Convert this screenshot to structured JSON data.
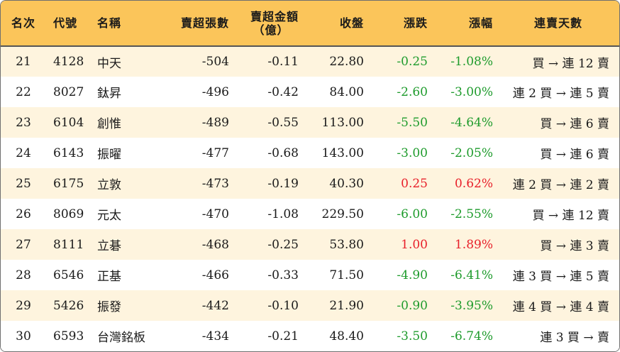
{
  "colors": {
    "header_bg": "#fbc55a",
    "stripe_bg": "#fef4de",
    "down_color": "#1e9b2c",
    "up_color": "#e8202a"
  },
  "headers": {
    "rank": "名次",
    "code": "代號",
    "name": "名稱",
    "net_sell_volume": "賣超張數",
    "net_sell_amount_line1": "賣超金額",
    "net_sell_amount_line2": "（億）",
    "close": "收盤",
    "change": "漲跌",
    "change_pct": "漲幅",
    "streak": "連賣天數"
  },
  "rows": [
    {
      "rank": "21",
      "code": "4128",
      "name": "中天",
      "volume": "-504",
      "amount": "-0.11",
      "close": "22.80",
      "change": "-0.25",
      "pct": "-1.08%",
      "dir": "down",
      "streak": "買 → 連 12 賣"
    },
    {
      "rank": "22",
      "code": "8027",
      "name": "鈦昇",
      "volume": "-496",
      "amount": "-0.42",
      "close": "84.00",
      "change": "-2.60",
      "pct": "-3.00%",
      "dir": "down",
      "streak": "連 2 買 → 連 5 賣"
    },
    {
      "rank": "23",
      "code": "6104",
      "name": "創惟",
      "volume": "-489",
      "amount": "-0.55",
      "close": "113.00",
      "change": "-5.50",
      "pct": "-4.64%",
      "dir": "down",
      "streak": "買 → 連 6 賣"
    },
    {
      "rank": "24",
      "code": "6143",
      "name": "振曜",
      "volume": "-477",
      "amount": "-0.68",
      "close": "143.00",
      "change": "-3.00",
      "pct": "-2.05%",
      "dir": "down",
      "streak": "買 → 連 6 賣"
    },
    {
      "rank": "25",
      "code": "6175",
      "name": "立敦",
      "volume": "-473",
      "amount": "-0.19",
      "close": "40.30",
      "change": "0.25",
      "pct": "0.62%",
      "dir": "up",
      "streak": "連 2 買 → 連 2 賣"
    },
    {
      "rank": "26",
      "code": "8069",
      "name": "元太",
      "volume": "-470",
      "amount": "-1.08",
      "close": "229.50",
      "change": "-6.00",
      "pct": "-2.55%",
      "dir": "down",
      "streak": "買 → 連 12 賣"
    },
    {
      "rank": "27",
      "code": "8111",
      "name": "立碁",
      "volume": "-468",
      "amount": "-0.25",
      "close": "53.80",
      "change": "1.00",
      "pct": "1.89%",
      "dir": "up",
      "streak": "買 → 連 3 賣"
    },
    {
      "rank": "28",
      "code": "6546",
      "name": "正基",
      "volume": "-466",
      "amount": "-0.33",
      "close": "71.50",
      "change": "-4.90",
      "pct": "-6.41%",
      "dir": "down",
      "streak": "連 3 買 → 連 5 賣"
    },
    {
      "rank": "29",
      "code": "5426",
      "name": "振發",
      "volume": "-442",
      "amount": "-0.10",
      "close": "21.90",
      "change": "-0.90",
      "pct": "-3.95%",
      "dir": "down",
      "streak": "連 4 買 → 連 4 賣"
    },
    {
      "rank": "30",
      "code": "6593",
      "name": "台灣銘板",
      "volume": "-434",
      "amount": "-0.21",
      "close": "48.40",
      "change": "-3.50",
      "pct": "-6.74%",
      "dir": "down",
      "streak": "連 3 買 → 賣"
    }
  ]
}
